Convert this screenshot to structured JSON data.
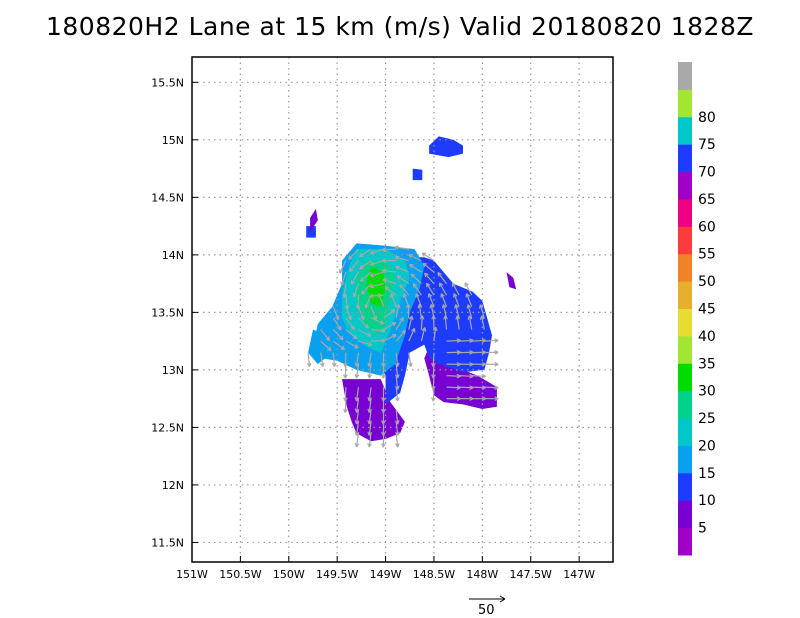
{
  "title": "180820H2 Lane at 15 km (m/s) Valid 20180820 1828Z",
  "chart_data": {
    "type": "heatmap",
    "title": "180820H2 Lane at 15 km (m/s) Valid 20180820 1828Z",
    "x_axis": {
      "range": [
        -151.0,
        -146.65
      ],
      "ticks": [
        -151,
        -150.5,
        -150,
        -149.5,
        -149,
        -148.5,
        -148,
        -147.5,
        -147
      ],
      "tick_labels": [
        "151W",
        "150.5W",
        "150W",
        "149.5W",
        "149W",
        "148.5W",
        "148W",
        "147.5W",
        "147W"
      ]
    },
    "y_axis": {
      "range": [
        11.33,
        15.72
      ],
      "ticks": [
        11.5,
        12,
        12.5,
        13,
        13.5,
        14,
        14.5,
        15,
        15.5
      ],
      "tick_labels": [
        "11.5N",
        "12N",
        "12.5N",
        "13N",
        "13.5N",
        "14N",
        "14.5N",
        "15N",
        "15.5N"
      ]
    },
    "grid": "dotted",
    "colorbar": {
      "labels": [
        "5",
        "10",
        "15",
        "20",
        "25",
        "30",
        "35",
        "40",
        "45",
        "50",
        "55",
        "60",
        "65",
        "70",
        "75",
        "80"
      ],
      "bins": [
        {
          "lo": 0,
          "hi": 5,
          "color": "#a000c8"
        },
        {
          "lo": 5,
          "hi": 10,
          "color": "#7800d2"
        },
        {
          "lo": 10,
          "hi": 15,
          "color": "#1e3cff"
        },
        {
          "lo": 15,
          "hi": 20,
          "color": "#0aa0f0"
        },
        {
          "lo": 20,
          "hi": 25,
          "color": "#00c8c8"
        },
        {
          "lo": 25,
          "hi": 30,
          "color": "#00d28c"
        },
        {
          "lo": 30,
          "hi": 35,
          "color": "#00dc00"
        },
        {
          "lo": 35,
          "hi": 40,
          "color": "#a0e632"
        },
        {
          "lo": 40,
          "hi": 45,
          "color": "#e6dc32"
        },
        {
          "lo": 45,
          "hi": 50,
          "color": "#e6af2d"
        },
        {
          "lo": 50,
          "hi": 55,
          "color": "#f08228"
        },
        {
          "lo": 55,
          "hi": 60,
          "color": "#fa3c3c"
        },
        {
          "lo": 60,
          "hi": 65,
          "color": "#f00082"
        },
        {
          "lo": 65,
          "hi": 70,
          "color": "#a000c8"
        },
        {
          "lo": 70,
          "hi": 75,
          "color": "#1e3cff"
        },
        {
          "lo": 75,
          "hi": 80,
          "color": "#00c8c8"
        },
        {
          "lo": 80,
          "hi": 85,
          "color": "#a0e632"
        },
        {
          "lo": 85,
          "hi": 90,
          "color": "#a9a9a9"
        }
      ]
    },
    "regions": [
      {
        "level": 5,
        "points": [
          [
            -149.45,
            12.92
          ],
          [
            -149.05,
            12.92
          ],
          [
            -148.95,
            12.72
          ],
          [
            -148.8,
            12.55
          ],
          [
            -148.85,
            12.45
          ],
          [
            -149.0,
            12.4
          ],
          [
            -149.15,
            12.38
          ],
          [
            -149.3,
            12.45
          ],
          [
            -149.35,
            12.55
          ],
          [
            -149.4,
            12.68
          ]
        ]
      },
      {
        "level": 5,
        "points": [
          [
            -148.5,
            13.3
          ],
          [
            -148.35,
            13.1
          ],
          [
            -148.2,
            13.0
          ],
          [
            -148.05,
            12.95
          ],
          [
            -147.85,
            12.85
          ],
          [
            -147.85,
            12.68
          ],
          [
            -148.0,
            12.66
          ],
          [
            -148.2,
            12.7
          ],
          [
            -148.4,
            12.72
          ],
          [
            -148.5,
            12.78
          ],
          [
            -148.55,
            12.95
          ],
          [
            -148.6,
            13.1
          ]
        ]
      },
      {
        "level": 10,
        "points": [
          [
            -148.6,
            13.98
          ],
          [
            -148.5,
            13.95
          ],
          [
            -148.4,
            13.85
          ],
          [
            -148.3,
            13.75
          ],
          [
            -148.1,
            13.68
          ],
          [
            -148.0,
            13.6
          ],
          [
            -147.95,
            13.45
          ],
          [
            -147.9,
            13.3
          ],
          [
            -147.93,
            13.15
          ],
          [
            -147.98,
            13.0
          ],
          [
            -148.2,
            12.98
          ],
          [
            -148.45,
            13.05
          ],
          [
            -148.55,
            13.1
          ],
          [
            -148.6,
            13.22
          ],
          [
            -148.75,
            13.15
          ],
          [
            -148.8,
            12.95
          ],
          [
            -148.85,
            12.8
          ],
          [
            -149.0,
            12.7
          ],
          [
            -149.0,
            12.95
          ],
          [
            -149.1,
            13.1
          ],
          [
            -149.25,
            13.2
          ],
          [
            -149.45,
            13.3
          ],
          [
            -149.5,
            13.45
          ],
          [
            -149.45,
            13.6
          ],
          [
            -149.3,
            13.7
          ],
          [
            -149.0,
            13.9
          ],
          [
            -148.8,
            13.98
          ]
        ]
      },
      {
        "level": 10,
        "points": [
          [
            -148.45,
            15.03
          ],
          [
            -148.3,
            15.0
          ],
          [
            -148.2,
            14.95
          ],
          [
            -148.2,
            14.88
          ],
          [
            -148.35,
            14.85
          ],
          [
            -148.55,
            14.88
          ],
          [
            -148.55,
            14.95
          ]
        ]
      },
      {
        "level": 10,
        "points": [
          [
            -148.72,
            14.75
          ],
          [
            -148.62,
            14.74
          ],
          [
            -148.62,
            14.65
          ],
          [
            -148.72,
            14.65
          ]
        ]
      },
      {
        "level": 10,
        "points": [
          [
            -149.82,
            14.25
          ],
          [
            -149.72,
            14.25
          ],
          [
            -149.72,
            14.15
          ],
          [
            -149.82,
            14.15
          ]
        ]
      },
      {
        "level": 5,
        "points": [
          [
            -147.75,
            13.85
          ],
          [
            -147.68,
            13.8
          ],
          [
            -147.65,
            13.7
          ],
          [
            -147.72,
            13.72
          ]
        ]
      },
      {
        "level": 5,
        "points": [
          [
            -149.72,
            14.4
          ],
          [
            -149.7,
            14.3
          ],
          [
            -149.78,
            14.2
          ],
          [
            -149.78,
            14.32
          ]
        ]
      },
      {
        "level": 15,
        "points": [
          [
            -149.3,
            14.1
          ],
          [
            -149.0,
            14.08
          ],
          [
            -148.7,
            14.05
          ],
          [
            -148.6,
            13.9
          ],
          [
            -148.65,
            13.7
          ],
          [
            -148.75,
            13.5
          ],
          [
            -148.8,
            13.3
          ],
          [
            -148.9,
            13.05
          ],
          [
            -149.05,
            12.95
          ],
          [
            -149.3,
            13.0
          ],
          [
            -149.5,
            13.08
          ],
          [
            -149.65,
            13.1
          ],
          [
            -149.75,
            13.2
          ],
          [
            -149.7,
            13.4
          ],
          [
            -149.55,
            13.55
          ],
          [
            -149.45,
            13.75
          ],
          [
            -149.45,
            13.95
          ]
        ]
      },
      {
        "level": 15,
        "points": [
          [
            -149.75,
            13.35
          ],
          [
            -149.6,
            13.3
          ],
          [
            -149.55,
            13.15
          ],
          [
            -149.7,
            13.05
          ],
          [
            -149.8,
            13.15
          ]
        ]
      },
      {
        "level": 20,
        "points": [
          [
            -149.3,
            14.05
          ],
          [
            -149.0,
            14.05
          ],
          [
            -148.8,
            13.95
          ],
          [
            -148.75,
            13.8
          ],
          [
            -148.85,
            13.6
          ],
          [
            -148.95,
            13.35
          ],
          [
            -149.05,
            13.15
          ],
          [
            -149.2,
            13.2
          ],
          [
            -149.35,
            13.3
          ],
          [
            -149.45,
            13.45
          ],
          [
            -149.45,
            13.65
          ],
          [
            -149.4,
            13.85
          ]
        ]
      },
      {
        "level": 25,
        "points": [
          [
            -149.2,
            13.95
          ],
          [
            -149.0,
            13.95
          ],
          [
            -148.9,
            13.8
          ],
          [
            -148.95,
            13.6
          ],
          [
            -149.0,
            13.4
          ],
          [
            -149.1,
            13.3
          ],
          [
            -149.22,
            13.4
          ],
          [
            -149.3,
            13.6
          ],
          [
            -149.3,
            13.8
          ]
        ]
      },
      {
        "level": 30,
        "points": [
          [
            -149.15,
            13.9
          ],
          [
            -149.02,
            13.85
          ],
          [
            -149.0,
            13.7
          ],
          [
            -149.05,
            13.55
          ],
          [
            -149.15,
            13.58
          ],
          [
            -149.2,
            13.75
          ]
        ]
      }
    ],
    "vectors_note": "gray wind vectors, reference arrow",
    "reference_vector": {
      "label": "50",
      "magnitude": 50
    }
  }
}
